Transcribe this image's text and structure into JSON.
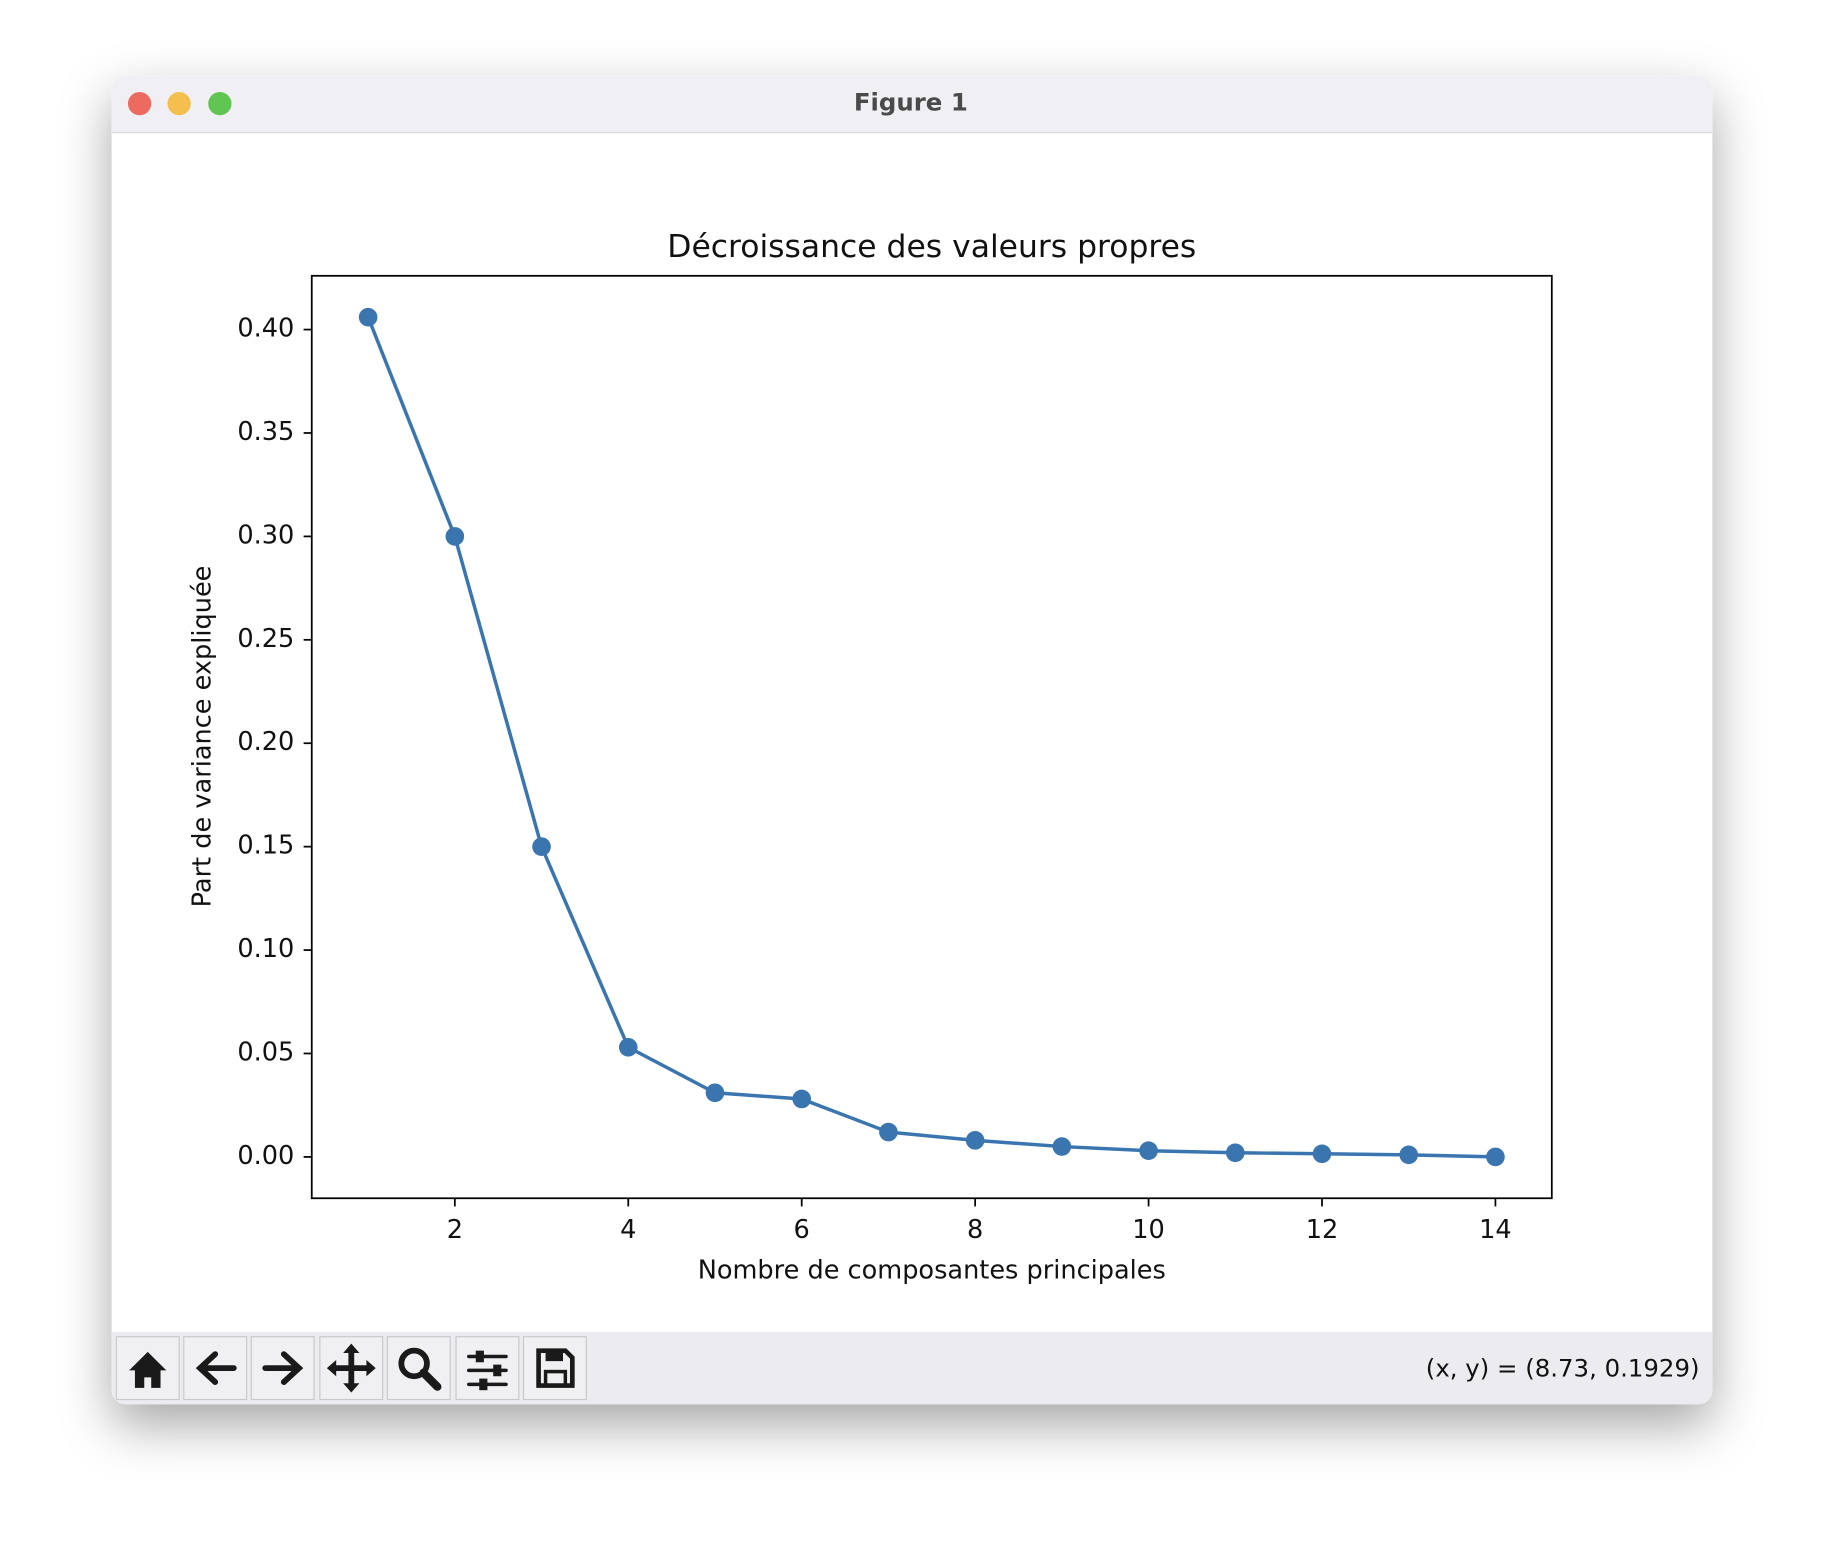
{
  "window": {
    "title": "Figure 1",
    "status": "(x, y) = (8.73, 0.1929)"
  },
  "chart_data": {
    "type": "line",
    "title": "Décroissance des valeurs propres",
    "xlabel": "Nombre de composantes principales",
    "ylabel": "Part de variance expliquée",
    "x": [
      1,
      2,
      3,
      4,
      5,
      6,
      7,
      8,
      9,
      10,
      11,
      12,
      13,
      14
    ],
    "values": [
      0.406,
      0.3,
      0.15,
      0.053,
      0.031,
      0.028,
      0.012,
      0.008,
      0.005,
      0.003,
      0.002,
      0.0015,
      0.001,
      0.0
    ],
    "color": "#3a75b0",
    "markers": true,
    "xlim": [
      0.35,
      14.65
    ],
    "ylim": [
      -0.02,
      0.426
    ],
    "xticks": [
      2,
      4,
      6,
      8,
      10,
      12,
      14
    ],
    "yticks": [
      {
        "value": 0,
        "label": "0.00"
      },
      {
        "value": 0.05,
        "label": "0.05"
      },
      {
        "value": 0.1,
        "label": "0.10"
      },
      {
        "value": 0.15,
        "label": "0.15"
      },
      {
        "value": 0.2,
        "label": "0.20"
      },
      {
        "value": 0.25,
        "label": "0.25"
      },
      {
        "value": 0.3,
        "label": "0.30"
      },
      {
        "value": 0.35,
        "label": "0.35"
      },
      {
        "value": 0.4,
        "label": "0.40"
      }
    ],
    "grid": false
  }
}
